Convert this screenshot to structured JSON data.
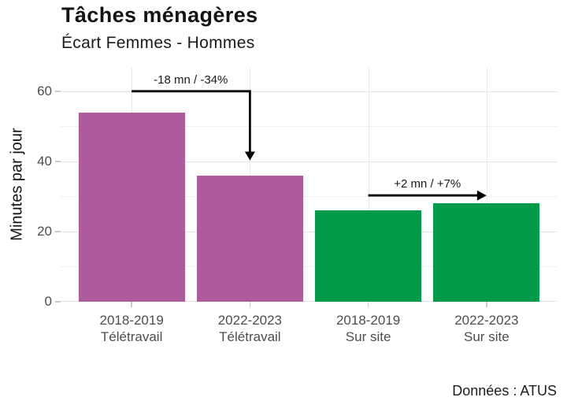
{
  "chart_data": {
    "type": "bar",
    "title": "Tâches ménagères",
    "subtitle": "Écart Femmes - Hommes",
    "caption": "Données : ATUS",
    "ylabel": "Minutes par jour",
    "xlabel": "",
    "categories": [
      "2018-2019 Télétravail",
      "2022-2023 Télétravail",
      "2018-2019 Sur site",
      "2022-2023 Sur site"
    ],
    "category_lines": [
      [
        "2018-2019",
        "Télétravail"
      ],
      [
        "2022-2023",
        "Télétravail"
      ],
      [
        "2018-2019",
        "Sur site"
      ],
      [
        "2022-2023",
        "Sur site"
      ]
    ],
    "values": [
      54,
      36,
      26,
      28
    ],
    "bar_colors": [
      "#AE5B9E",
      "#AE5B9E",
      "#009B48",
      "#009B48"
    ],
    "group_colors": {
      "teletravail": "#AE5B9E",
      "sur_site": "#009B48"
    },
    "yticks": [
      0,
      20,
      40,
      60
    ],
    "minor_grid": [
      10,
      30,
      50
    ],
    "ylim": [
      0,
      66.7
    ],
    "grid": "both",
    "legend": "none",
    "arrow_color": "#000000",
    "annotations": [
      {
        "text": "-18 mn / -34%",
        "style": "elbow-down",
        "from_category": 0,
        "to_category": 1,
        "line_y": 60,
        "tip_y": 40.3
      },
      {
        "text": "+2 mn / +7%",
        "style": "arrow-right",
        "from_category": 2,
        "to_category": 3,
        "line_y": 30.3
      }
    ]
  }
}
